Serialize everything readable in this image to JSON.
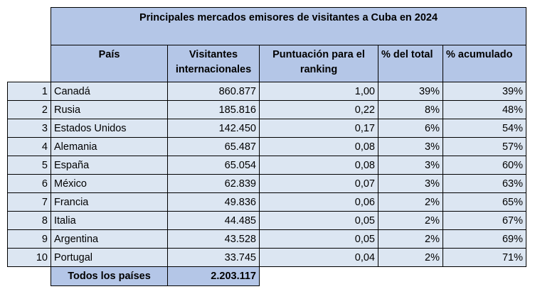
{
  "table": {
    "title": "Principales mercados emisores de visitantes a Cuba en 2024",
    "headers": {
      "country": "País",
      "visitors": "Visitantes internacionales",
      "score": "Puntuación para el ranking",
      "pct": "% del total",
      "cum": "% acumulado"
    },
    "rows": [
      {
        "rank": "1",
        "country": "Canadá",
        "visitors": "860.877",
        "score": "1,00",
        "pct": "39%",
        "cum": "39%"
      },
      {
        "rank": "2",
        "country": "Rusia",
        "visitors": "185.816",
        "score": "0,22",
        "pct": "8%",
        "cum": "48%"
      },
      {
        "rank": "3",
        "country": "Estados Unidos",
        "visitors": "142.450",
        "score": "0,17",
        "pct": "6%",
        "cum": "54%"
      },
      {
        "rank": "4",
        "country": "Alemania",
        "visitors": "65.487",
        "score": "0,08",
        "pct": "3%",
        "cum": "57%"
      },
      {
        "rank": "5",
        "country": "España",
        "visitors": "65.054",
        "score": "0,08",
        "pct": "3%",
        "cum": "60%"
      },
      {
        "rank": "6",
        "country": "México",
        "visitors": "62.839",
        "score": "0,07",
        "pct": "3%",
        "cum": "63%"
      },
      {
        "rank": "7",
        "country": "Francia",
        "visitors": "49.836",
        "score": "0,06",
        "pct": "2%",
        "cum": "65%"
      },
      {
        "rank": "8",
        "country": "Italia",
        "visitors": "44.485",
        "score": "0,05",
        "pct": "2%",
        "cum": "67%"
      },
      {
        "rank": "9",
        "country": "Argentina",
        "visitors": "43.528",
        "score": "0,05",
        "pct": "2%",
        "cum": "69%"
      },
      {
        "rank": "10",
        "country": "Portugal",
        "visitors": "33.745",
        "score": "0,04",
        "pct": "2%",
        "cum": "71%"
      }
    ],
    "footer": {
      "label": "Todos los países",
      "total": "2.203.117"
    }
  },
  "colors": {
    "header_fill": "#b4c6e7",
    "row_fill": "#dce6f2"
  }
}
